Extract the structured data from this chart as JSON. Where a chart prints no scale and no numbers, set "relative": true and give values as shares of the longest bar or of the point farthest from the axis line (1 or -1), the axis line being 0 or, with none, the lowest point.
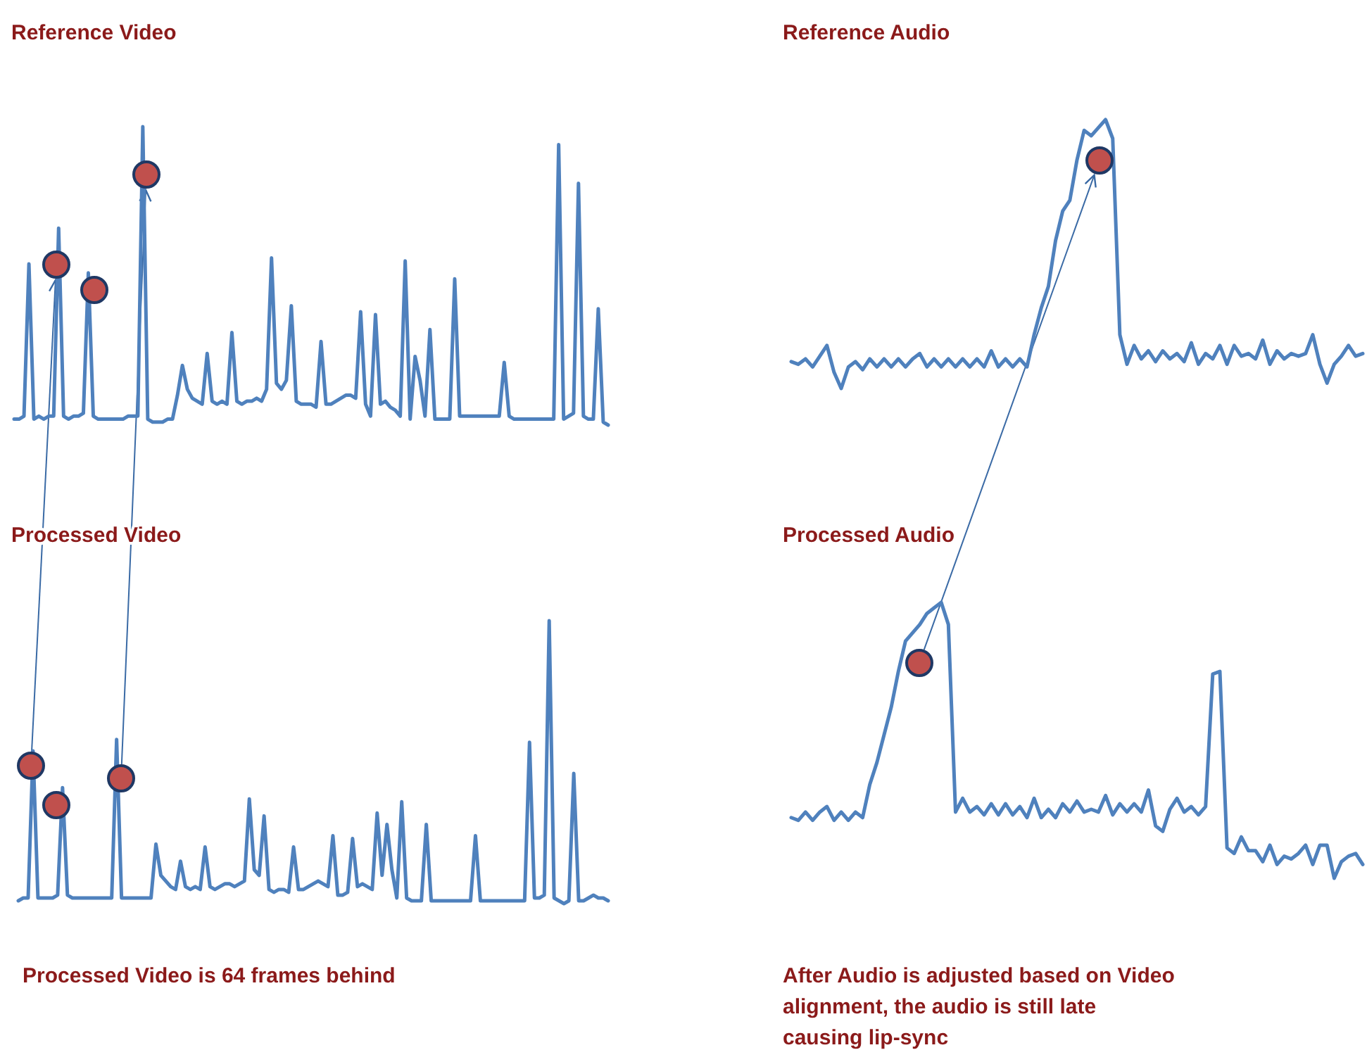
{
  "chart_data": [
    {
      "type": "line",
      "title": "Reference Video",
      "relative": true,
      "categories": [
        null,
        null,
        null,
        null,
        null,
        null,
        null,
        null,
        null,
        null,
        null,
        null,
        null,
        null,
        null,
        null,
        null,
        null,
        null,
        null,
        null,
        null,
        null,
        null,
        null,
        null,
        null,
        null,
        null,
        null,
        null,
        null,
        null,
        null,
        null,
        null,
        null,
        null,
        null,
        null,
        null,
        null,
        null,
        null,
        null,
        null,
        null,
        null,
        null,
        null,
        null,
        null,
        null,
        null,
        null,
        null,
        null,
        null,
        null,
        null,
        null,
        null,
        null,
        null,
        null,
        null,
        null,
        null,
        null,
        null,
        null,
        null,
        null,
        null,
        null,
        null,
        null,
        null,
        null,
        null,
        null,
        null,
        null,
        null,
        null,
        null,
        null,
        null,
        null,
        null,
        null,
        null,
        null,
        null,
        null,
        null,
        null,
        null,
        null,
        null,
        null,
        null,
        null,
        null,
        null,
        null,
        null,
        null,
        null,
        null,
        null,
        null,
        null,
        null,
        null,
        null,
        null,
        null,
        null,
        null,
        null
      ],
      "series": [
        {
          "color": "#4f81bd",
          "values": [
            0.02,
            0.02,
            0.03,
            0.54,
            0.02,
            0.03,
            0.02,
            0.03,
            0.03,
            0.66,
            0.03,
            0.02,
            0.03,
            0.03,
            0.04,
            0.51,
            0.03,
            0.02,
            0.02,
            0.02,
            0.02,
            0.02,
            0.02,
            0.03,
            0.03,
            0.03,
            1,
            0.02,
            0.01,
            0.01,
            0.01,
            0.02,
            0.02,
            0.1,
            0.2,
            0.12,
            0.09,
            0.08,
            0.07,
            0.24,
            0.08,
            0.07,
            0.08,
            0.07,
            0.31,
            0.08,
            0.07,
            0.08,
            0.08,
            0.09,
            0.08,
            0.12,
            0.56,
            0.14,
            0.12,
            0.15,
            0.4,
            0.08,
            0.07,
            0.07,
            0.07,
            0.06,
            0.28,
            0.07,
            0.07,
            0.08,
            0.09,
            0.1,
            0.1,
            0.09,
            0.38,
            0.07,
            0.03,
            0.37,
            0.07,
            0.08,
            0.06,
            0.05,
            0.03,
            0.55,
            0.02,
            0.23,
            0.15,
            0.03,
            0.32,
            0.02,
            0.02,
            0.02,
            0.02,
            0.49,
            0.03,
            0.03,
            0.03,
            0.03,
            0.03,
            0.03,
            0.03,
            0.03,
            0.03,
            0.21,
            0.03,
            0.02,
            0.02,
            0.02,
            0.02,
            0.02,
            0.02,
            0.02,
            0.02,
            0.02,
            0.94,
            0.02,
            0.03,
            0.04,
            0.81,
            0.03,
            0.02,
            0.02,
            0.39,
            0.01,
            0
          ]
        }
      ]
    },
    {
      "type": "line",
      "title": "Reference Audio",
      "relative": true,
      "categories": [
        null,
        null,
        null,
        null,
        null,
        null,
        null,
        null,
        null,
        null,
        null,
        null,
        null,
        null,
        null,
        null,
        null,
        null,
        null,
        null,
        null,
        null,
        null,
        null,
        null,
        null,
        null,
        null,
        null,
        null,
        null,
        null,
        null,
        null,
        null,
        null,
        null,
        null,
        null,
        null,
        null,
        null,
        null,
        null,
        null,
        null,
        null,
        null,
        null,
        null,
        null,
        null,
        null,
        null,
        null,
        null,
        null,
        null,
        null,
        null,
        null,
        null,
        null,
        null,
        null,
        null,
        null,
        null,
        null,
        null,
        null,
        null,
        null,
        null,
        null,
        null,
        null,
        null,
        null,
        null,
        null
      ],
      "series": [
        {
          "color": "#4f81bd",
          "values": [
            0.1,
            0.09,
            0.11,
            0.08,
            0.12,
            0.16,
            0.06,
            0,
            0.08,
            0.1,
            0.07,
            0.11,
            0.08,
            0.11,
            0.08,
            0.11,
            0.08,
            0.11,
            0.13,
            0.08,
            0.11,
            0.08,
            0.11,
            0.08,
            0.11,
            0.08,
            0.11,
            0.08,
            0.14,
            0.08,
            0.11,
            0.08,
            0.11,
            0.08,
            0.2,
            0.3,
            0.38,
            0.55,
            0.66,
            0.7,
            0.85,
            0.96,
            0.94,
            0.97,
            1,
            0.93,
            0.2,
            0.09,
            0.16,
            0.11,
            0.14,
            0.1,
            0.14,
            0.11,
            0.13,
            0.1,
            0.17,
            0.09,
            0.13,
            0.11,
            0.16,
            0.09,
            0.16,
            0.12,
            0.13,
            0.11,
            0.18,
            0.09,
            0.14,
            0.11,
            0.13,
            0.12,
            0.13,
            0.2,
            0.09,
            0.02,
            0.09,
            0.12,
            0.16,
            0.12,
            0.13
          ]
        }
      ]
    },
    {
      "type": "line",
      "title": "Processed Video",
      "relative": true,
      "annotations": [
        "Processed Video is 64 frames behind"
      ],
      "categories": [
        null,
        null,
        null,
        null,
        null,
        null,
        null,
        null,
        null,
        null,
        null,
        null,
        null,
        null,
        null,
        null,
        null,
        null,
        null,
        null,
        null,
        null,
        null,
        null,
        null,
        null,
        null,
        null,
        null,
        null,
        null,
        null,
        null,
        null,
        null,
        null,
        null,
        null,
        null,
        null,
        null,
        null,
        null,
        null,
        null,
        null,
        null,
        null,
        null,
        null,
        null,
        null,
        null,
        null,
        null,
        null,
        null,
        null,
        null,
        null,
        null,
        null,
        null,
        null,
        null,
        null,
        null,
        null,
        null,
        null,
        null,
        null,
        null,
        null,
        null,
        null,
        null,
        null,
        null,
        null,
        null,
        null,
        null,
        null,
        null,
        null,
        null,
        null,
        null,
        null,
        null,
        null,
        null,
        null,
        null,
        null,
        null,
        null,
        null,
        null,
        null,
        null,
        null,
        null,
        null,
        null,
        null,
        null,
        null,
        null,
        null,
        null,
        null,
        null,
        null,
        null,
        null,
        null,
        null,
        null,
        null
      ],
      "series": [
        {
          "color": "#4f81bd",
          "values": [
            0.01,
            0.02,
            0.02,
            0.54,
            0.02,
            0.02,
            0.02,
            0.02,
            0.03,
            0.41,
            0.03,
            0.02,
            0.02,
            0.02,
            0.02,
            0.02,
            0.02,
            0.02,
            0.02,
            0.02,
            0.58,
            0.02,
            0.02,
            0.02,
            0.02,
            0.02,
            0.02,
            0.02,
            0.21,
            0.1,
            0.08,
            0.06,
            0.05,
            0.15,
            0.06,
            0.05,
            0.06,
            0.05,
            0.2,
            0.06,
            0.05,
            0.06,
            0.07,
            0.07,
            0.06,
            0.07,
            0.08,
            0.37,
            0.12,
            0.1,
            0.31,
            0.05,
            0.04,
            0.05,
            0.05,
            0.04,
            0.2,
            0.05,
            0.05,
            0.06,
            0.07,
            0.08,
            0.07,
            0.06,
            0.24,
            0.03,
            0.03,
            0.04,
            0.23,
            0.06,
            0.07,
            0.06,
            0.05,
            0.32,
            0.1,
            0.28,
            0.12,
            0.02,
            0.36,
            0.02,
            0.01,
            0.01,
            0.01,
            0.28,
            0.01,
            0.01,
            0.01,
            0.01,
            0.01,
            0.01,
            0.01,
            0.01,
            0.01,
            0.24,
            0.01,
            0.01,
            0.01,
            0.01,
            0.01,
            0.01,
            0.01,
            0.01,
            0.01,
            0.01,
            0.57,
            0.02,
            0.02,
            0.03,
            1,
            0.02,
            0.01,
            0,
            0.01,
            0.46,
            0.01,
            0.01,
            0.02,
            0.03,
            0.02,
            0.02,
            0.01
          ]
        }
      ]
    },
    {
      "type": "line",
      "title": "Processed Audio",
      "relative": true,
      "annotations": [
        "After Audio is adjusted based on Video alignment, the audio is still late causing lip-sync"
      ],
      "categories": [
        null,
        null,
        null,
        null,
        null,
        null,
        null,
        null,
        null,
        null,
        null,
        null,
        null,
        null,
        null,
        null,
        null,
        null,
        null,
        null,
        null,
        null,
        null,
        null,
        null,
        null,
        null,
        null,
        null,
        null,
        null,
        null,
        null,
        null,
        null,
        null,
        null,
        null,
        null,
        null,
        null,
        null,
        null,
        null,
        null,
        null,
        null,
        null,
        null,
        null,
        null,
        null,
        null,
        null,
        null,
        null,
        null,
        null,
        null,
        null,
        null,
        null,
        null,
        null,
        null,
        null,
        null,
        null,
        null,
        null,
        null,
        null,
        null,
        null,
        null,
        null,
        null,
        null,
        null,
        null,
        null
      ],
      "series": [
        {
          "color": "#4f81bd",
          "values": [
            0.22,
            0.21,
            0.24,
            0.21,
            0.24,
            0.26,
            0.21,
            0.24,
            0.21,
            0.24,
            0.22,
            0.34,
            0.42,
            0.52,
            0.62,
            0.75,
            0.86,
            0.89,
            0.92,
            0.96,
            0.98,
            1,
            0.92,
            0.24,
            0.29,
            0.24,
            0.26,
            0.23,
            0.27,
            0.23,
            0.27,
            0.23,
            0.26,
            0.22,
            0.29,
            0.22,
            0.25,
            0.22,
            0.27,
            0.24,
            0.28,
            0.24,
            0.25,
            0.24,
            0.3,
            0.23,
            0.27,
            0.24,
            0.27,
            0.24,
            0.32,
            0.19,
            0.17,
            0.25,
            0.29,
            0.24,
            0.26,
            0.23,
            0.26,
            0.74,
            0.75,
            0.11,
            0.09,
            0.15,
            0.1,
            0.1,
            0.06,
            0.12,
            0.05,
            0.08,
            0.07,
            0.09,
            0.12,
            0.05,
            0.12,
            0.12,
            0,
            0.06,
            0.08,
            0.09,
            0.05
          ]
        }
      ]
    }
  ]
}
